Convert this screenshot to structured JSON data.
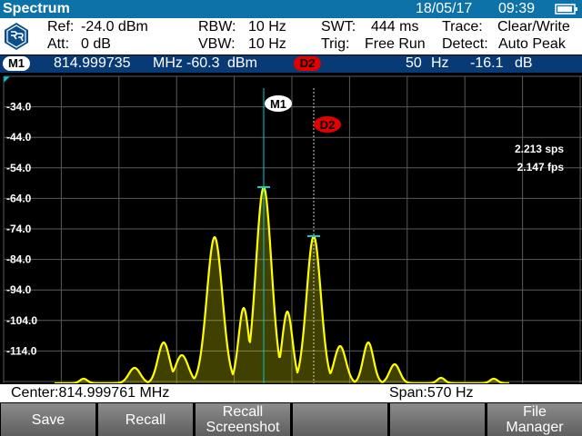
{
  "app": {
    "title": "Spectrum",
    "date": "18/05/17",
    "time": "09:39"
  },
  "header": {
    "ref_label": "Ref:",
    "ref_value": "-24.0 dBm",
    "att_label": "Att:",
    "att_value": "0 dB",
    "rbw_label": "RBW:",
    "rbw_value": "10 Hz",
    "vbw_label": "VBW:",
    "vbw_value": "10 Hz",
    "swt_label": "SWT:",
    "swt_value": "444 ms",
    "trig_label": "Trig:",
    "trig_value": "Free Run",
    "trace_label": "Trace:",
    "trace_value": "Clear/Write",
    "detect_label": "Detect:",
    "detect_value": "Auto Peak"
  },
  "markers": {
    "m1_label": "M1",
    "m1_freq": "814.999735",
    "m1_freq_unit": "MHz",
    "m1_level": "-60.3",
    "m1_level_unit": "dBm",
    "d2_label": "D2",
    "d2_freq": "50",
    "d2_freq_unit": "Hz",
    "d2_level": "-16.1",
    "d2_level_unit": "dB"
  },
  "plot": {
    "y_ticks": [
      "-34.0",
      "-44.0",
      "-54.0",
      "-64.0",
      "-74.0",
      "-84.0",
      "-94.0",
      "-104.0",
      "-114.0"
    ],
    "rate_sps": "2.213 sps",
    "rate_fps": "2.147 fps",
    "trace_color": "#ffff00",
    "marker_color": "#00d0d0",
    "delta_marker_color": "#e00000"
  },
  "infobar": {
    "center": "Center:814.999761 MHz",
    "span": "Span:570 Hz"
  },
  "softkeys": [
    {
      "line1": "Save",
      "line2": ""
    },
    {
      "line1": "Recall",
      "line2": ""
    },
    {
      "line1": "Recall",
      "line2": "Screenshot"
    },
    {
      "line1": "",
      "line2": ""
    },
    {
      "line1": "",
      "line2": ""
    },
    {
      "line1": "File",
      "line2": "Manager"
    }
  ]
}
